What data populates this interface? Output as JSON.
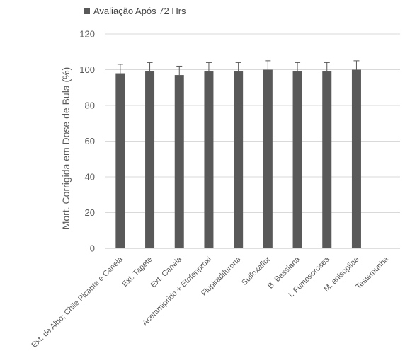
{
  "chart_data": {
    "type": "bar",
    "title": "",
    "xlabel": "",
    "ylabel": "Mort. Corrigida em Dose de Bula (%)",
    "ylim": [
      0,
      120
    ],
    "yticks": [
      0,
      20,
      40,
      60,
      80,
      100,
      120
    ],
    "grid": true,
    "legend_position": "top-left",
    "categories": [
      "Ext. de Alho; Chile Picante e Canela",
      "Ext. Tagete",
      "Ext. Canela",
      "Acetamiprido + Etofenproxi",
      "Flupiradifurona",
      "Sulfoxaflor",
      "B. Bassiana",
      "I. Fumosorosea",
      "M. anisopliae",
      "Testemunha"
    ],
    "series": [
      {
        "name": "Avaliação Após 72 Hrs",
        "values": [
          98,
          99,
          97,
          99,
          99,
          100,
          99,
          99,
          100,
          0
        ],
        "error": [
          5,
          5,
          5,
          5,
          5,
          5,
          5,
          5,
          5,
          0
        ],
        "color": "#595959"
      }
    ]
  }
}
